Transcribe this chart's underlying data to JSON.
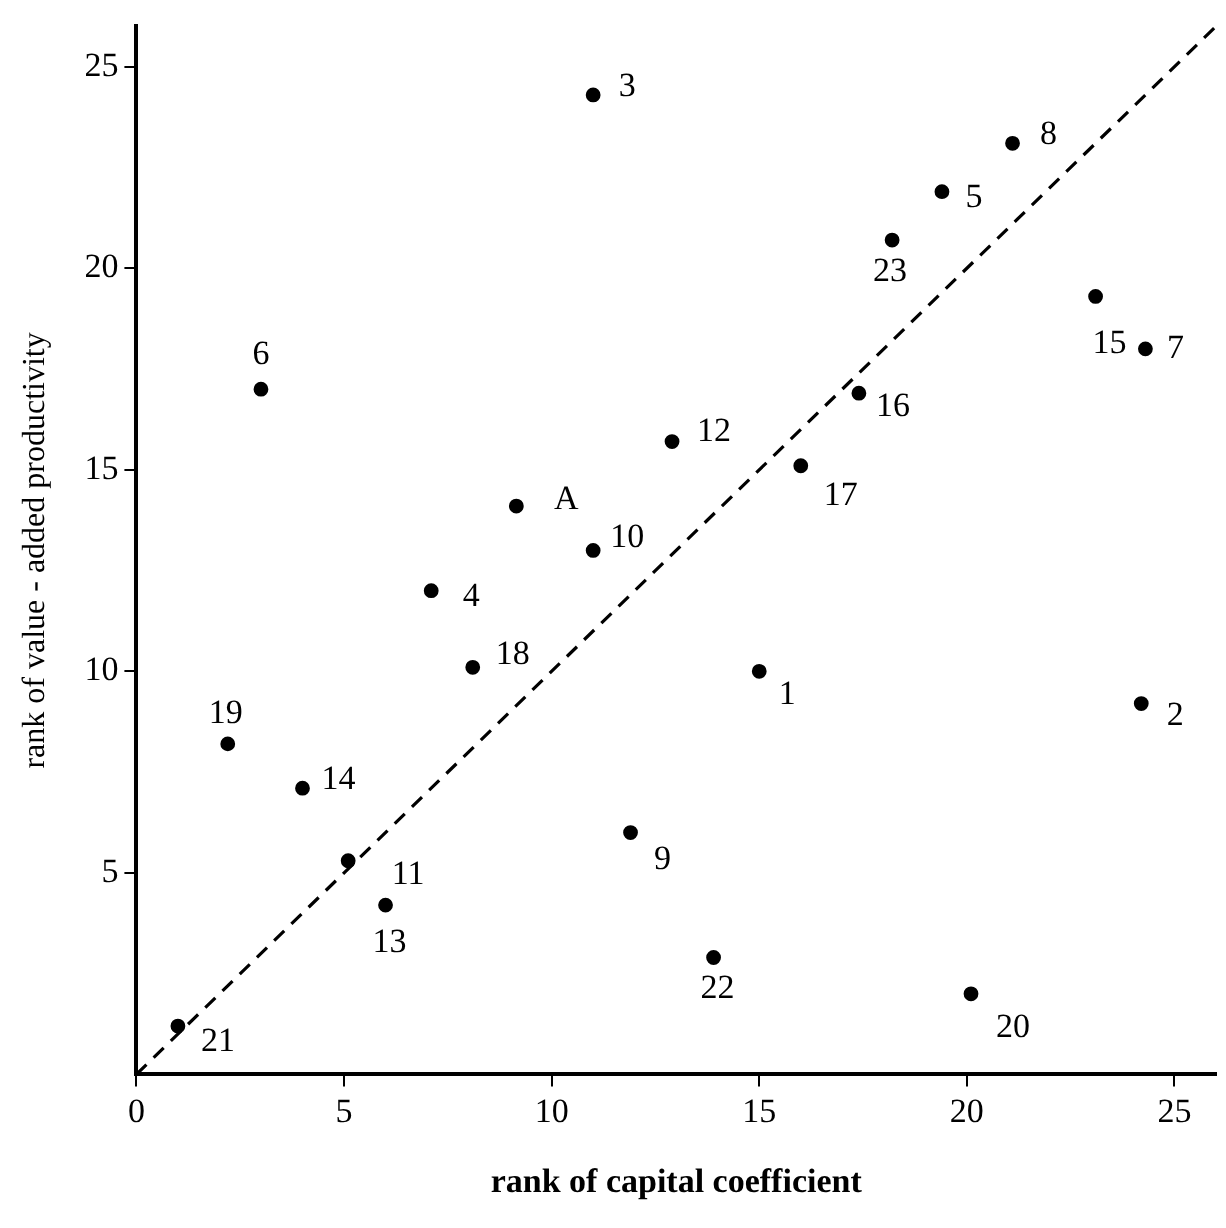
{
  "chart_data": {
    "type": "scatter",
    "xlabel": "rank of capital coefficient",
    "ylabel": "rank of value - added productivity",
    "xlim": [
      0,
      26
    ],
    "ylim": [
      0,
      26
    ],
    "xticks": [
      0,
      5,
      10,
      15,
      20,
      25
    ],
    "yticks": [
      5,
      10,
      15,
      20,
      25
    ],
    "grid": false,
    "legend": false,
    "marker": "circle",
    "series": [
      {
        "color": "#000000",
        "x": [
          15.0,
          24.2,
          11.0,
          7.1,
          19.4,
          3.0,
          24.3,
          21.1,
          11.9,
          11.0,
          5.1,
          12.9,
          6.0,
          4.0,
          23.1,
          17.4,
          16.0,
          8.1,
          2.2,
          20.1,
          1.0,
          13.9,
          18.2,
          9.15
        ],
        "values": [
          10.0,
          9.2,
          24.3,
          12.0,
          21.9,
          17.0,
          18.0,
          23.1,
          6.0,
          13.0,
          5.3,
          15.7,
          4.2,
          7.1,
          19.3,
          16.9,
          15.1,
          10.1,
          8.2,
          2.0,
          1.2,
          2.9,
          20.7,
          14.1
        ]
      },
      {
        "type": "line",
        "color": "#000000",
        "line_style": "dashed",
        "marker": "none",
        "x": [
          0,
          26
        ],
        "values": [
          0,
          26
        ]
      }
    ],
    "annotations": [
      {
        "text": "1",
        "x": 15.0,
        "y": 10.0
      },
      {
        "text": "2",
        "x": 24.2,
        "y": 9.2
      },
      {
        "text": "3",
        "x": 11.0,
        "y": 24.3
      },
      {
        "text": "4",
        "x": 7.1,
        "y": 12.0
      },
      {
        "text": "5",
        "x": 19.4,
        "y": 21.9
      },
      {
        "text": "6",
        "x": 3.0,
        "y": 17.0
      },
      {
        "text": "7",
        "x": 24.3,
        "y": 18.0
      },
      {
        "text": "8",
        "x": 21.1,
        "y": 23.1
      },
      {
        "text": "9",
        "x": 11.9,
        "y": 6.0
      },
      {
        "text": "10",
        "x": 11.0,
        "y": 13.0
      },
      {
        "text": "11",
        "x": 5.1,
        "y": 5.3
      },
      {
        "text": "12",
        "x": 12.9,
        "y": 15.7
      },
      {
        "text": "13",
        "x": 6.0,
        "y": 4.2
      },
      {
        "text": "14",
        "x": 4.0,
        "y": 7.1
      },
      {
        "text": "15",
        "x": 23.1,
        "y": 19.3
      },
      {
        "text": "16",
        "x": 17.4,
        "y": 16.9
      },
      {
        "text": "17",
        "x": 16.0,
        "y": 15.1
      },
      {
        "text": "18",
        "x": 8.1,
        "y": 10.1
      },
      {
        "text": "19",
        "x": 2.2,
        "y": 8.2
      },
      {
        "text": "20",
        "x": 20.1,
        "y": 2.0
      },
      {
        "text": "21",
        "x": 1.0,
        "y": 1.2
      },
      {
        "text": "22",
        "x": 13.9,
        "y": 2.9
      },
      {
        "text": "23",
        "x": 18.2,
        "y": 20.7
      },
      {
        "text": "A",
        "x": 9.15,
        "y": 14.1
      }
    ]
  }
}
